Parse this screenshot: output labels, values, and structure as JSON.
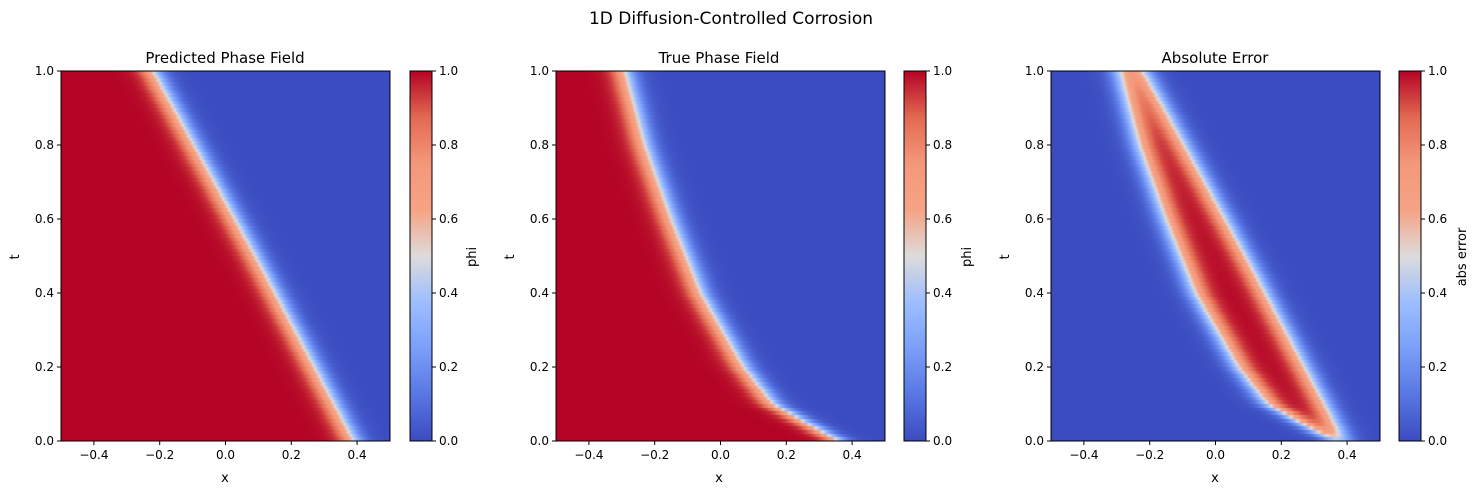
{
  "figure": {
    "suptitle": "1D Diffusion-Controlled Corrosion"
  },
  "colormap": {
    "name": "coolwarm",
    "stops": [
      {
        "v": 0.0,
        "color": "#3b4cc0"
      },
      {
        "v": 0.125,
        "color": "#5977e3"
      },
      {
        "v": 0.25,
        "color": "#7b9ff9"
      },
      {
        "v": 0.375,
        "color": "#9ebeff"
      },
      {
        "v": 0.5,
        "color": "#dddcdc"
      },
      {
        "v": 0.625,
        "color": "#f6a385"
      },
      {
        "v": 0.75,
        "color": "#f4987a"
      },
      {
        "v": 0.875,
        "color": "#e36a53"
      },
      {
        "v": 1.0,
        "color": "#b40426"
      }
    ]
  },
  "chart_data": [
    {
      "type": "heatmap",
      "title": "Predicted Phase Field",
      "xlabel": "x",
      "ylabel": "t",
      "xlim": [
        -0.5,
        0.5
      ],
      "ylim": [
        0.0,
        1.0
      ],
      "xticks": [
        "-0.4",
        "-0.2",
        "0.0",
        "0.2",
        "0.4"
      ],
      "xtick_values": [
        -0.4,
        -0.2,
        0.0,
        0.2,
        0.4
      ],
      "yticks": [
        "0.0",
        "0.2",
        "0.4",
        "0.6",
        "0.8",
        "1.0"
      ],
      "ytick_values": [
        0.0,
        0.2,
        0.4,
        0.6,
        0.8,
        1.0
      ],
      "colorbar": {
        "label": "phi",
        "range": [
          0.0,
          1.0
        ],
        "ticks": [
          "0.0",
          "0.2",
          "0.4",
          "0.6",
          "0.8",
          "1.0"
        ],
        "tick_values": [
          0.0,
          0.2,
          0.4,
          0.6,
          0.8,
          1.0
        ]
      },
      "field": {
        "description_values": "phi = 1 left of front, 0 right of front",
        "front_points": [
          [
            0.0,
            0.39
          ],
          [
            0.5,
            0.09
          ],
          [
            1.0,
            -0.22
          ]
        ],
        "width": 0.02
      }
    },
    {
      "type": "heatmap",
      "title": "True Phase Field",
      "xlabel": "x",
      "ylabel": "t",
      "xlim": [
        -0.5,
        0.5
      ],
      "ylim": [
        0.0,
        1.0
      ],
      "xticks": [
        "-0.4",
        "-0.2",
        "0.0",
        "0.2",
        "0.4"
      ],
      "xtick_values": [
        -0.4,
        -0.2,
        0.0,
        0.2,
        0.4
      ],
      "yticks": [
        "0.0",
        "0.2",
        "0.4",
        "0.6",
        "0.8",
        "1.0"
      ],
      "ytick_values": [
        0.0,
        0.2,
        0.4,
        0.6,
        0.8,
        1.0
      ],
      "colorbar": {
        "label": "phi",
        "range": [
          0.0,
          1.0
        ],
        "ticks": [
          "0.0",
          "0.2",
          "0.4",
          "0.6",
          "0.8",
          "1.0"
        ],
        "tick_values": [
          0.0,
          0.2,
          0.4,
          0.6,
          0.8,
          1.0
        ]
      },
      "field": {
        "front_points": [
          [
            0.0,
            0.36
          ],
          [
            0.1,
            0.16
          ],
          [
            0.2,
            0.07
          ],
          [
            0.4,
            -0.06
          ],
          [
            0.6,
            -0.15
          ],
          [
            0.8,
            -0.23
          ],
          [
            1.0,
            -0.29
          ]
        ],
        "width": 0.02
      }
    },
    {
      "type": "heatmap",
      "title": "Absolute Error",
      "xlabel": "x",
      "ylabel": "t",
      "xlim": [
        -0.5,
        0.5
      ],
      "ylim": [
        0.0,
        1.0
      ],
      "xticks": [
        "-0.4",
        "-0.2",
        "0.0",
        "0.2",
        "0.4"
      ],
      "xtick_values": [
        -0.4,
        -0.2,
        0.0,
        0.2,
        0.4
      ],
      "yticks": [
        "0.0",
        "0.2",
        "0.4",
        "0.6",
        "0.8",
        "1.0"
      ],
      "ytick_values": [
        0.0,
        0.2,
        0.4,
        0.6,
        0.8,
        1.0
      ],
      "colorbar": {
        "label": "abs error",
        "range": [
          0.0,
          1.0
        ],
        "ticks": [
          "0.0",
          "0.2",
          "0.4",
          "0.6",
          "0.8",
          "1.0"
        ],
        "tick_values": [
          0.0,
          0.2,
          0.4,
          0.6,
          0.8,
          1.0
        ]
      },
      "field": {
        "description_values": "|predicted - true|",
        "band_center": [
          [
            0.0,
            0.38
          ],
          [
            0.2,
            0.2
          ],
          [
            0.4,
            0.05
          ],
          [
            0.6,
            -0.06
          ],
          [
            0.8,
            -0.16
          ],
          [
            1.0,
            -0.25
          ]
        ],
        "band_halfwidth": [
          [
            0.0,
            0.015
          ],
          [
            0.3,
            0.07
          ],
          [
            0.6,
            0.08
          ],
          [
            1.0,
            0.03
          ]
        ]
      }
    }
  ]
}
